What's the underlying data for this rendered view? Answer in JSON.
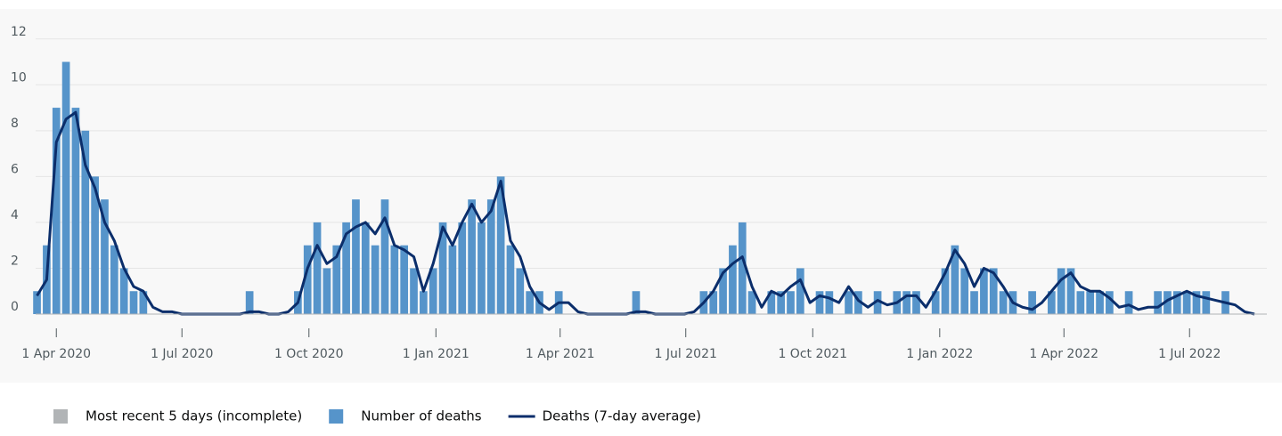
{
  "chart_data": {
    "type": "bar",
    "x": [
      "2020-03-18",
      "2020-03-25",
      "2020-04-01",
      "2020-04-08",
      "2020-04-15",
      "2020-04-22",
      "2020-04-29",
      "2020-05-06",
      "2020-05-13",
      "2020-05-20",
      "2020-05-27",
      "2020-06-03",
      "2020-06-10",
      "2020-06-17",
      "2020-06-24",
      "2020-07-01",
      "2020-07-08",
      "2020-07-15",
      "2020-07-22",
      "2020-07-29",
      "2020-08-05",
      "2020-08-12",
      "2020-08-19",
      "2020-08-26",
      "2020-09-02",
      "2020-09-09",
      "2020-09-16",
      "2020-09-23",
      "2020-09-30",
      "2020-10-07",
      "2020-10-14",
      "2020-10-21",
      "2020-10-28",
      "2020-11-04",
      "2020-11-11",
      "2020-11-18",
      "2020-11-25",
      "2020-12-02",
      "2020-12-09",
      "2020-12-16",
      "2020-12-23",
      "2020-12-30",
      "2021-01-06",
      "2021-01-13",
      "2021-01-20",
      "2021-01-27",
      "2021-02-03",
      "2021-02-10",
      "2021-02-17",
      "2021-02-24",
      "2021-03-03",
      "2021-03-10",
      "2021-03-17",
      "2021-03-24",
      "2021-03-31",
      "2021-04-07",
      "2021-04-14",
      "2021-04-21",
      "2021-04-28",
      "2021-05-05",
      "2021-05-12",
      "2021-05-19",
      "2021-05-26",
      "2021-06-02",
      "2021-06-09",
      "2021-06-16",
      "2021-06-23",
      "2021-06-30",
      "2021-07-07",
      "2021-07-14",
      "2021-07-21",
      "2021-07-28",
      "2021-08-04",
      "2021-08-11",
      "2021-08-18",
      "2021-08-25",
      "2021-09-01",
      "2021-09-08",
      "2021-09-15",
      "2021-09-22",
      "2021-09-29",
      "2021-10-06",
      "2021-10-13",
      "2021-10-20",
      "2021-10-27",
      "2021-11-03",
      "2021-11-10",
      "2021-11-17",
      "2021-11-24",
      "2021-12-01",
      "2021-12-08",
      "2021-12-15",
      "2021-12-22",
      "2021-12-29",
      "2022-01-05",
      "2022-01-12",
      "2022-01-19",
      "2022-01-26",
      "2022-02-02",
      "2022-02-09",
      "2022-02-16",
      "2022-02-23",
      "2022-03-02",
      "2022-03-09",
      "2022-03-16",
      "2022-03-23",
      "2022-03-30",
      "2022-04-06",
      "2022-04-13",
      "2022-04-20",
      "2022-04-27",
      "2022-05-04",
      "2022-05-11",
      "2022-05-18",
      "2022-05-25",
      "2022-06-01",
      "2022-06-08",
      "2022-06-15",
      "2022-06-22",
      "2022-06-29",
      "2022-07-06",
      "2022-07-13",
      "2022-07-20",
      "2022-07-27",
      "2022-08-03",
      "2022-08-10",
      "2022-08-17"
    ],
    "series": [
      {
        "name": "Number of deaths",
        "color": "#5694ca",
        "kind": "bar",
        "values": [
          1,
          3,
          9,
          11,
          9,
          8,
          6,
          5,
          3,
          2,
          1,
          1,
          0,
          0,
          0,
          0,
          0,
          0,
          0,
          0,
          0,
          0,
          1,
          0,
          0,
          0,
          0,
          1,
          3,
          4,
          2,
          3,
          4,
          5,
          4,
          3,
          5,
          3,
          3,
          2,
          1,
          2,
          4,
          3,
          4,
          5,
          4,
          5,
          6,
          3,
          2,
          1,
          1,
          0,
          1,
          0,
          0,
          0,
          0,
          0,
          0,
          0,
          1,
          0,
          0,
          0,
          0,
          0,
          0,
          1,
          1,
          2,
          3,
          4,
          1,
          0,
          1,
          1,
          1,
          2,
          0,
          1,
          1,
          0,
          1,
          1,
          0,
          1,
          0,
          1,
          1,
          1,
          0,
          1,
          2,
          3,
          2,
          1,
          2,
          2,
          1,
          1,
          0,
          1,
          0,
          1,
          2,
          2,
          1,
          1,
          1,
          1,
          0,
          1,
          0,
          0,
          1,
          1,
          1,
          1,
          1,
          1,
          0,
          1,
          0,
          0,
          0
        ]
      },
      {
        "name": "Deaths (7-day average)",
        "color": "#0b2e6b",
        "kind": "line",
        "values": [
          0.8,
          1.5,
          7.5,
          8.5,
          8.8,
          6.5,
          5.5,
          4,
          3.2,
          2,
          1.2,
          1,
          0.3,
          0.1,
          0.1,
          0,
          0,
          0,
          0,
          0,
          0,
          0,
          0.1,
          0.1,
          0,
          0,
          0.1,
          0.5,
          2,
          3,
          2.2,
          2.5,
          3.5,
          3.8,
          4,
          3.5,
          4.2,
          3,
          2.8,
          2.5,
          1,
          2.2,
          3.8,
          3,
          4,
          4.8,
          4,
          4.5,
          5.8,
          3.2,
          2.5,
          1.2,
          0.5,
          0.2,
          0.5,
          0.5,
          0.1,
          0,
          0,
          0,
          0,
          0,
          0.1,
          0.1,
          0,
          0,
          0,
          0,
          0.1,
          0.5,
          1,
          1.8,
          2.2,
          2.5,
          1.2,
          0.3,
          1,
          0.8,
          1.2,
          1.5,
          0.5,
          0.8,
          0.7,
          0.5,
          1.2,
          0.6,
          0.3,
          0.6,
          0.4,
          0.5,
          0.8,
          0.8,
          0.3,
          1,
          1.8,
          2.8,
          2.2,
          1.2,
          2,
          1.8,
          1.2,
          0.5,
          0.3,
          0.2,
          0.5,
          1,
          1.5,
          1.8,
          1.2,
          1,
          1,
          0.7,
          0.3,
          0.4,
          0.2,
          0.3,
          0.3,
          0.6,
          0.8,
          1,
          0.8,
          0.7,
          0.6,
          0.5,
          0.4,
          0.1,
          0
        ]
      }
    ],
    "incomplete": {
      "name": "Most recent 5 days (incomplete)",
      "color": "#b1b4b6"
    },
    "xlim": [
      "2020-03-17",
      "2022-08-26"
    ],
    "xticks": [
      {
        "value": "2020-04-01",
        "label": "1 Apr 2020"
      },
      {
        "value": "2020-07-01",
        "label": "1 Jul 2020"
      },
      {
        "value": "2020-10-01",
        "label": "1 Oct 2020"
      },
      {
        "value": "2021-01-01",
        "label": "1 Jan 2021"
      },
      {
        "value": "2021-04-01",
        "label": "1 Apr 2021"
      },
      {
        "value": "2021-07-01",
        "label": "1 Jul 2021"
      },
      {
        "value": "2021-10-01",
        "label": "1 Oct 2021"
      },
      {
        "value": "2022-01-01",
        "label": "1 Jan 2022"
      },
      {
        "value": "2022-04-01",
        "label": "1 Apr 2022"
      },
      {
        "value": "2022-07-01",
        "label": "1 Jul 2022"
      }
    ],
    "ylim": [
      0,
      13
    ],
    "yticks": [
      0,
      2,
      4,
      6,
      8,
      10,
      12
    ],
    "grid": true
  }
}
